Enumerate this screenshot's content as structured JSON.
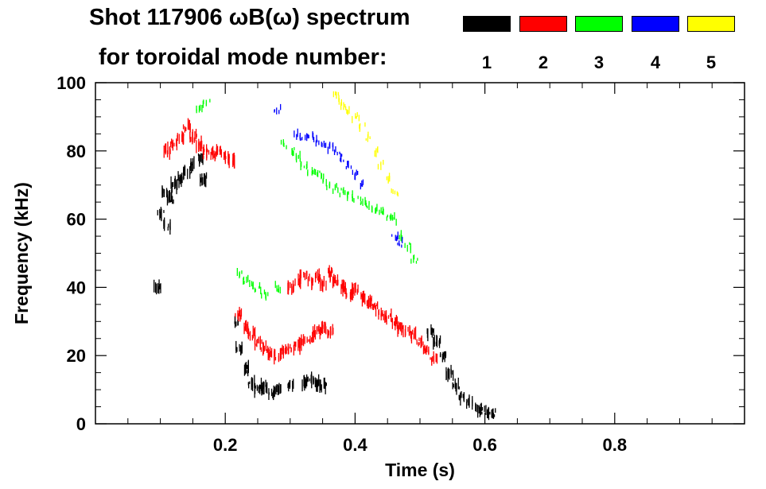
{
  "header": {
    "title_line1": "Shot 117906 ωB(ω) spectrum",
    "title_line2": "for toroidal mode number:"
  },
  "legend": [
    {
      "label": "1",
      "color": "#000000"
    },
    {
      "label": "2",
      "color": "#ff0000"
    },
    {
      "label": "3",
      "color": "#00ff00"
    },
    {
      "label": "4",
      "color": "#0000ff"
    },
    {
      "label": "5",
      "color": "#ffff00"
    }
  ],
  "chart_data": {
    "type": "scatter",
    "title": "Shot 117906 ωB(ω) spectrum for toroidal mode number",
    "xlabel": "Time (s)",
    "ylabel": "Frequency (kHz)",
    "xlim": [
      0.0,
      1.0
    ],
    "ylim": [
      0,
      100
    ],
    "x_ticks": [
      0.2,
      0.4,
      0.6,
      0.8
    ],
    "x_tick_labels": [
      "0.2",
      "0.4",
      "0.6",
      "0.8"
    ],
    "y_ticks": [
      0,
      20,
      40,
      60,
      80,
      100
    ],
    "y_tick_labels": [
      "0",
      "20",
      "40",
      "60",
      "80",
      "100"
    ],
    "series": [
      {
        "name": "1",
        "color": "#000000",
        "points": [
          [
            0.095,
            40
          ],
          [
            0.1,
            62
          ],
          [
            0.105,
            68
          ],
          [
            0.11,
            58
          ],
          [
            0.115,
            66
          ],
          [
            0.12,
            70
          ],
          [
            0.13,
            72
          ],
          [
            0.14,
            74
          ],
          [
            0.15,
            76
          ],
          [
            0.16,
            78
          ],
          [
            0.165,
            72
          ],
          [
            0.215,
            30
          ],
          [
            0.22,
            22
          ],
          [
            0.23,
            16
          ],
          [
            0.24,
            12
          ],
          [
            0.25,
            10
          ],
          [
            0.26,
            11
          ],
          [
            0.27,
            9
          ],
          [
            0.28,
            10
          ],
          [
            0.3,
            11
          ],
          [
            0.32,
            12
          ],
          [
            0.33,
            13
          ],
          [
            0.34,
            12
          ],
          [
            0.35,
            11
          ],
          [
            0.515,
            27
          ],
          [
            0.525,
            24
          ],
          [
            0.535,
            20
          ],
          [
            0.545,
            15
          ],
          [
            0.555,
            11
          ],
          [
            0.565,
            8
          ],
          [
            0.575,
            6
          ],
          [
            0.59,
            4
          ],
          [
            0.6,
            3.5
          ],
          [
            0.61,
            3
          ]
        ]
      },
      {
        "name": "2",
        "color": "#ff0000",
        "points": [
          [
            0.11,
            80
          ],
          [
            0.12,
            82
          ],
          [
            0.13,
            84
          ],
          [
            0.14,
            87
          ],
          [
            0.15,
            84
          ],
          [
            0.16,
            82
          ],
          [
            0.17,
            80
          ],
          [
            0.18,
            79
          ],
          [
            0.19,
            80
          ],
          [
            0.2,
            78
          ],
          [
            0.21,
            77
          ],
          [
            0.22,
            32
          ],
          [
            0.23,
            28
          ],
          [
            0.24,
            26
          ],
          [
            0.25,
            24
          ],
          [
            0.26,
            22
          ],
          [
            0.27,
            21
          ],
          [
            0.28,
            20
          ],
          [
            0.29,
            21
          ],
          [
            0.3,
            22
          ],
          [
            0.31,
            23
          ],
          [
            0.32,
            24
          ],
          [
            0.33,
            25
          ],
          [
            0.34,
            27
          ],
          [
            0.35,
            28
          ],
          [
            0.36,
            27
          ],
          [
            0.3,
            40
          ],
          [
            0.31,
            42
          ],
          [
            0.32,
            44
          ],
          [
            0.33,
            42
          ],
          [
            0.34,
            43
          ],
          [
            0.35,
            41
          ],
          [
            0.36,
            44
          ],
          [
            0.37,
            42
          ],
          [
            0.38,
            40
          ],
          [
            0.39,
            38
          ],
          [
            0.4,
            39
          ],
          [
            0.41,
            37
          ],
          [
            0.42,
            36
          ],
          [
            0.43,
            34
          ],
          [
            0.44,
            32
          ],
          [
            0.45,
            31
          ],
          [
            0.46,
            30
          ],
          [
            0.47,
            28
          ],
          [
            0.48,
            27
          ],
          [
            0.49,
            26
          ],
          [
            0.5,
            24
          ],
          [
            0.51,
            22
          ],
          [
            0.52,
            19
          ]
        ]
      },
      {
        "name": "3",
        "color": "#00ff00",
        "points": [
          [
            0.16,
            92
          ],
          [
            0.17,
            94
          ],
          [
            0.22,
            44
          ],
          [
            0.23,
            42
          ],
          [
            0.24,
            41
          ],
          [
            0.25,
            40
          ],
          [
            0.26,
            38
          ],
          [
            0.28,
            40
          ],
          [
            0.29,
            82
          ],
          [
            0.3,
            80
          ],
          [
            0.31,
            78
          ],
          [
            0.32,
            76
          ],
          [
            0.33,
            74
          ],
          [
            0.34,
            73
          ],
          [
            0.35,
            72
          ],
          [
            0.36,
            70
          ],
          [
            0.37,
            69
          ],
          [
            0.38,
            68
          ],
          [
            0.39,
            67
          ],
          [
            0.4,
            66
          ],
          [
            0.41,
            65
          ],
          [
            0.42,
            64
          ],
          [
            0.43,
            63
          ],
          [
            0.44,
            62
          ],
          [
            0.45,
            61
          ],
          [
            0.46,
            60
          ],
          [
            0.47,
            55
          ],
          [
            0.48,
            52
          ],
          [
            0.49,
            48
          ]
        ]
      },
      {
        "name": "4",
        "color": "#0000ff",
        "points": [
          [
            0.28,
            92
          ],
          [
            0.31,
            85
          ],
          [
            0.32,
            84
          ],
          [
            0.33,
            84
          ],
          [
            0.34,
            83
          ],
          [
            0.35,
            82
          ],
          [
            0.36,
            81
          ],
          [
            0.37,
            80
          ],
          [
            0.38,
            78
          ],
          [
            0.39,
            76
          ],
          [
            0.4,
            73
          ],
          [
            0.41,
            70
          ],
          [
            0.46,
            55
          ],
          [
            0.47,
            53
          ]
        ]
      },
      {
        "name": "5",
        "color": "#ffff00",
        "points": [
          [
            0.37,
            96
          ],
          [
            0.38,
            94
          ],
          [
            0.39,
            92
          ],
          [
            0.4,
            90
          ],
          [
            0.41,
            87
          ],
          [
            0.42,
            84
          ],
          [
            0.43,
            80
          ],
          [
            0.44,
            76
          ],
          [
            0.45,
            72
          ],
          [
            0.46,
            68
          ]
        ]
      }
    ]
  }
}
